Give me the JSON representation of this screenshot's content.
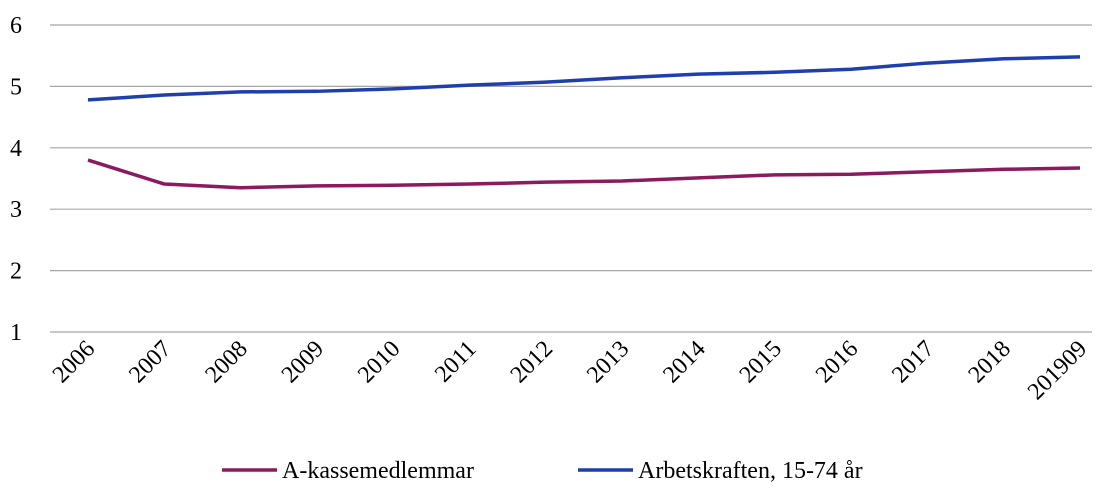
{
  "chart_data": {
    "type": "line",
    "categories": [
      "2006",
      "2007",
      "2008",
      "2009",
      "2010",
      "2011",
      "2012",
      "2013",
      "2014",
      "2015",
      "2016",
      "2017",
      "2018",
      "201909"
    ],
    "series": [
      {
        "name": "A-kassemedlemmar",
        "color": "#8b1a5e",
        "values": [
          3.8,
          3.41,
          3.35,
          3.38,
          3.39,
          3.41,
          3.44,
          3.46,
          3.51,
          3.56,
          3.57,
          3.61,
          3.65,
          3.67
        ]
      },
      {
        "name": "Arbetskraften, 15-74 år",
        "color": "#1f3fae",
        "values": [
          4.78,
          4.86,
          4.91,
          4.92,
          4.96,
          5.02,
          5.07,
          5.14,
          5.2,
          5.23,
          5.28,
          5.38,
          5.45,
          5.48
        ]
      }
    ],
    "ylim": [
      1,
      6
    ],
    "yticks": [
      1,
      2,
      3,
      4,
      5,
      6
    ],
    "grid": true,
    "legend": "bottom"
  }
}
